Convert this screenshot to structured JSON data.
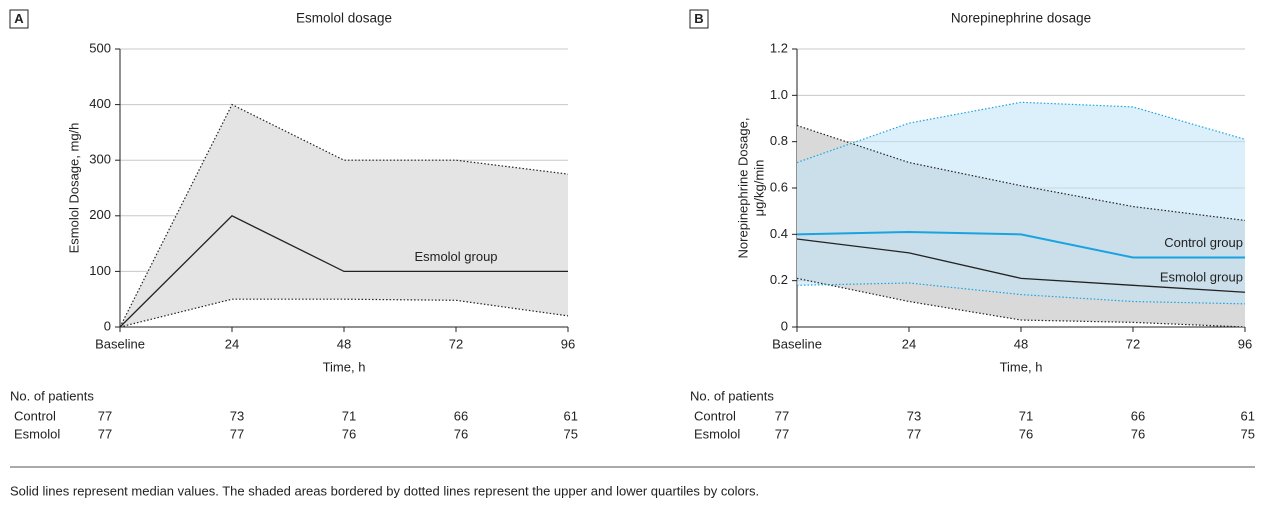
{
  "chart_data": [
    {
      "type": "line",
      "panel": "A",
      "title": "Esmolol dosage",
      "ylabel": [
        "Esmolol Dosage, mg/h"
      ],
      "xlabel": "Time, h",
      "categories": [
        "Baseline",
        "24",
        "48",
        "72",
        "96"
      ],
      "ylim": [
        0,
        500
      ],
      "yticks": [
        0,
        100,
        200,
        300,
        400,
        500
      ],
      "grid": true,
      "series": [
        {
          "name": "Esmolol group",
          "color": "#222222",
          "band_color": "#e4e4e4",
          "values": [
            0,
            200,
            100,
            100,
            100
          ],
          "upper": [
            0,
            400,
            300,
            300,
            275
          ],
          "lower": [
            0,
            50,
            50,
            48,
            20
          ]
        }
      ],
      "patients": {
        "title": "No. of patients",
        "rows": [
          {
            "name": "Control",
            "values": [
              77,
              73,
              71,
              66,
              61
            ]
          },
          {
            "name": "Esmolol",
            "values": [
              77,
              77,
              76,
              76,
              75
            ]
          }
        ]
      }
    },
    {
      "type": "line",
      "panel": "B",
      "title": "Norepinephrine dosage",
      "ylabel": [
        "Norepinephrine Dosage,",
        "μg/kg/min"
      ],
      "xlabel": "Time, h",
      "categories": [
        "Baseline",
        "24",
        "48",
        "72",
        "96"
      ],
      "ylim": [
        0,
        1.2
      ],
      "yticks": [
        0,
        0.2,
        0.4,
        0.6,
        0.8,
        {
          "value": 1,
          "label": "1.0"
        },
        1.2
      ],
      "grid": true,
      "series": [
        {
          "name": "Esmolol group",
          "color": "#222222",
          "band_color": "#d9d9d9",
          "values": [
            0.38,
            0.32,
            0.21,
            0.18,
            0.15
          ],
          "upper": [
            0.87,
            0.71,
            0.61,
            0.52,
            0.46
          ],
          "lower": [
            0.21,
            0.11,
            0.03,
            0.02,
            0.0
          ]
        },
        {
          "name": "Control group",
          "color": "#1aa3e0",
          "band_color": "#bfe4f7",
          "values": [
            0.4,
            0.41,
            0.4,
            0.3,
            0.3
          ],
          "upper": [
            0.71,
            0.88,
            0.97,
            0.95,
            0.81
          ],
          "lower": [
            0.18,
            0.19,
            0.14,
            0.11,
            0.1
          ]
        }
      ],
      "patients": {
        "title": "No. of patients",
        "rows": [
          {
            "name": "Control",
            "values": [
              77,
              73,
              71,
              66,
              61
            ]
          },
          {
            "name": "Esmolol",
            "values": [
              77,
              77,
              76,
              76,
              75
            ]
          }
        ]
      }
    }
  ],
  "footnote": "Solid lines represent median values. The shaded areas bordered by dotted lines represent the upper and lower quartiles by colors."
}
